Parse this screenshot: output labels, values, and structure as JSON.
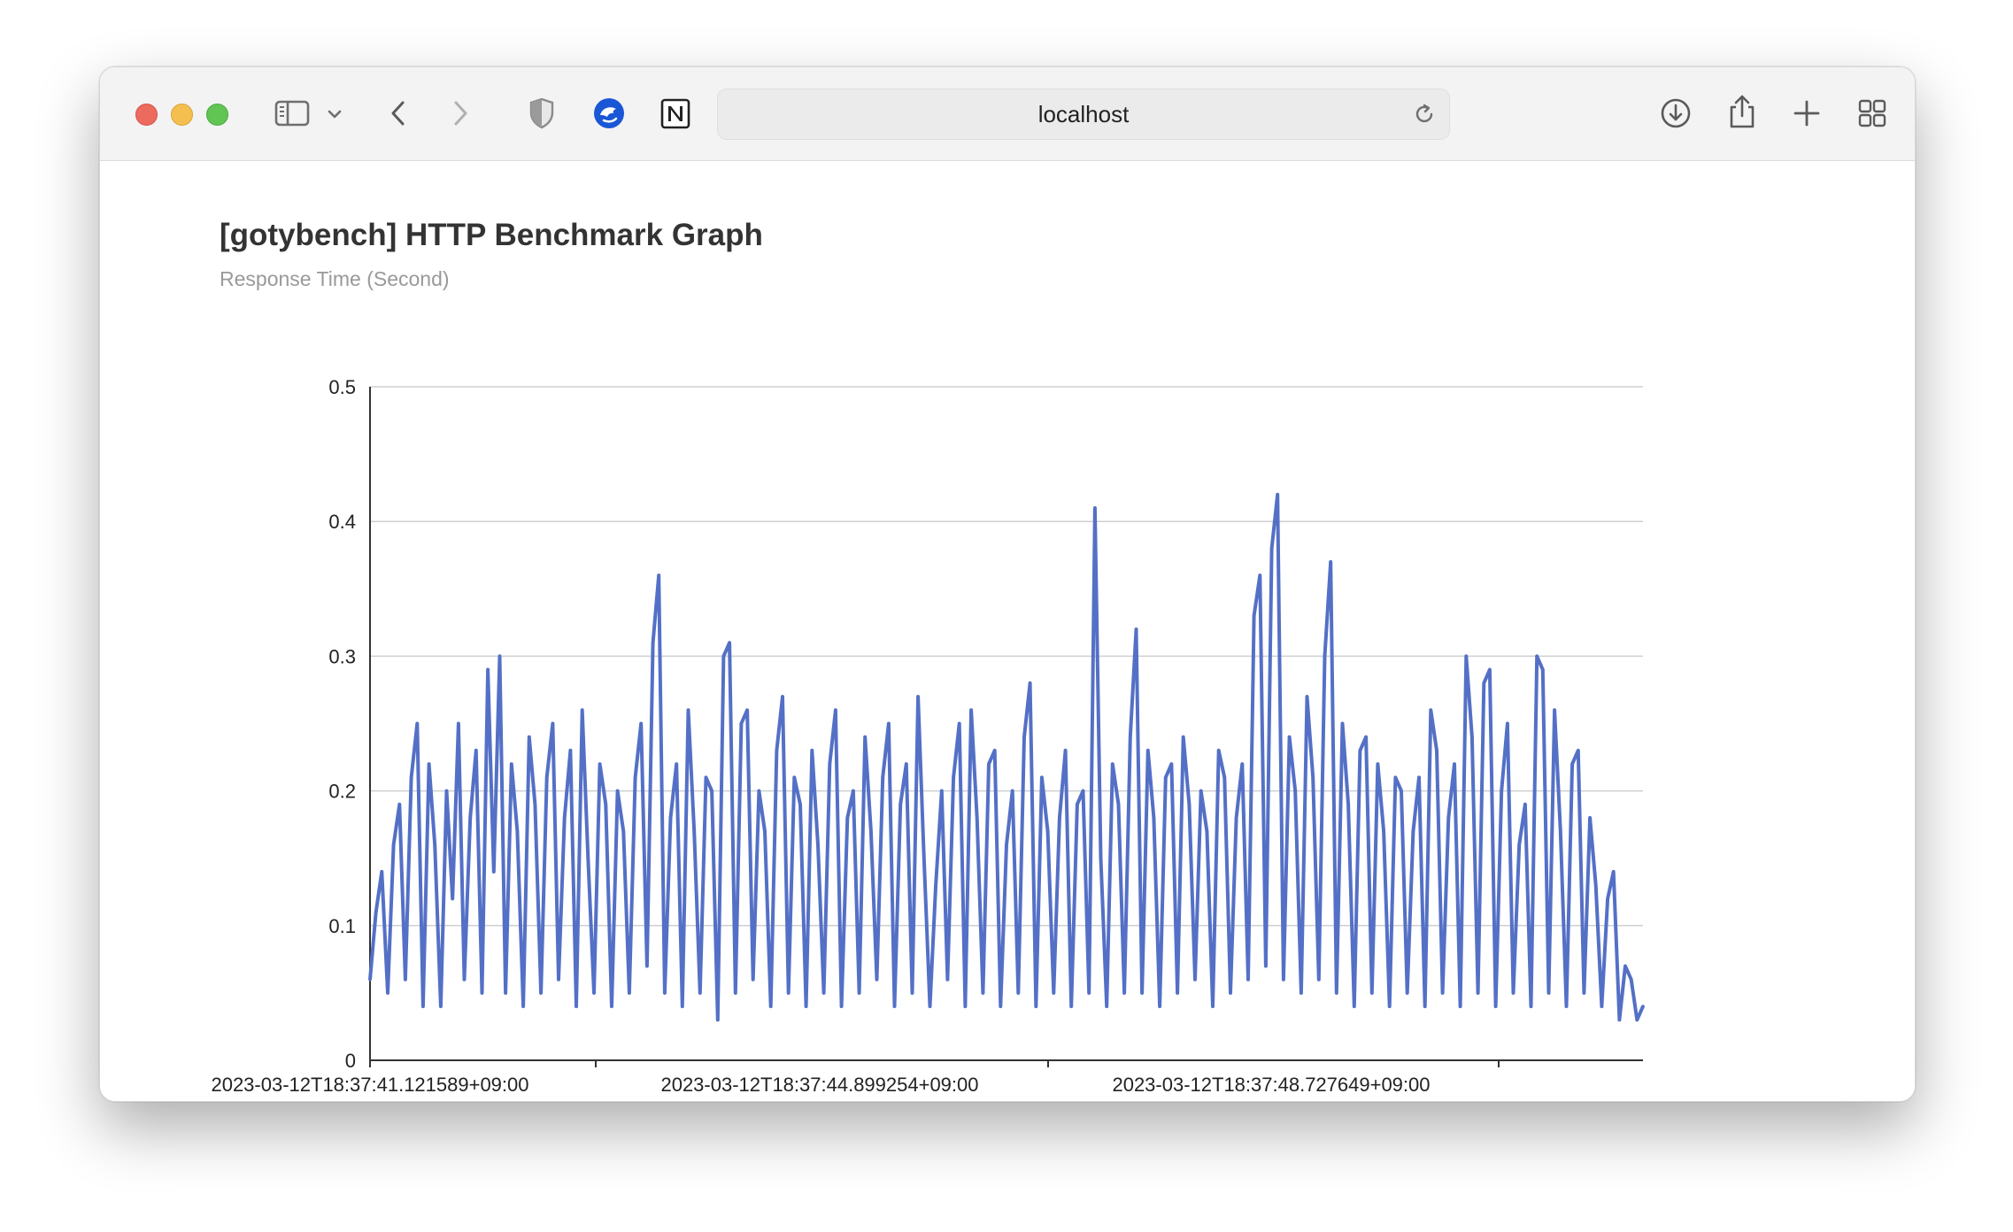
{
  "browser": {
    "address": "localhost",
    "icons": [
      "sidebar-icon",
      "chevron-down-icon",
      "back-icon",
      "forward-icon",
      "shield-icon",
      "extension-icon",
      "notion-icon",
      "reload-icon",
      "download-icon",
      "share-icon",
      "new-tab-icon",
      "tab-overview-icon"
    ]
  },
  "page": {
    "title": "[gotybench] HTTP Benchmark Graph",
    "subtitle": "Response Time (Second)"
  },
  "chart_data": {
    "type": "line",
    "title": "[gotybench] HTTP Benchmark Graph",
    "subtitle": "Response Time (Second)",
    "ylim": [
      0,
      0.5
    ],
    "y_ticks": [
      "0",
      "0.1",
      "0.2",
      "0.3",
      "0.4",
      "0.5"
    ],
    "x_ticks": [
      "2023-03-12T18:37:41.121589+09:00",
      "2023-03-12T18:37:44.899254+09:00",
      "2023-03-12T18:37:48.727649+09:00"
    ],
    "grid": true,
    "color": "#5470c6",
    "series": [
      {
        "values": [
          0.06,
          0.11,
          0.14,
          0.05,
          0.16,
          0.19,
          0.06,
          0.21,
          0.25,
          0.04,
          0.22,
          0.16,
          0.04,
          0.2,
          0.12,
          0.25,
          0.06,
          0.18,
          0.23,
          0.05,
          0.29,
          0.14,
          0.3,
          0.05,
          0.22,
          0.17,
          0.04,
          0.24,
          0.19,
          0.05,
          0.21,
          0.25,
          0.06,
          0.18,
          0.23,
          0.04,
          0.26,
          0.15,
          0.05,
          0.22,
          0.19,
          0.04,
          0.2,
          0.17,
          0.05,
          0.21,
          0.25,
          0.07,
          0.31,
          0.36,
          0.05,
          0.18,
          0.22,
          0.04,
          0.26,
          0.17,
          0.05,
          0.21,
          0.2,
          0.03,
          0.3,
          0.31,
          0.05,
          0.25,
          0.26,
          0.06,
          0.2,
          0.17,
          0.04,
          0.23,
          0.27,
          0.05,
          0.21,
          0.19,
          0.04,
          0.23,
          0.16,
          0.05,
          0.22,
          0.26,
          0.04,
          0.18,
          0.2,
          0.05,
          0.24,
          0.17,
          0.06,
          0.21,
          0.25,
          0.04,
          0.19,
          0.22,
          0.05,
          0.27,
          0.15,
          0.04,
          0.13,
          0.2,
          0.06,
          0.21,
          0.25,
          0.04,
          0.26,
          0.18,
          0.05,
          0.22,
          0.23,
          0.04,
          0.16,
          0.2,
          0.05,
          0.24,
          0.28,
          0.04,
          0.21,
          0.17,
          0.05,
          0.18,
          0.23,
          0.04,
          0.19,
          0.2,
          0.05,
          0.41,
          0.15,
          0.04,
          0.22,
          0.19,
          0.05,
          0.24,
          0.32,
          0.05,
          0.23,
          0.18,
          0.04,
          0.21,
          0.22,
          0.05,
          0.24,
          0.19,
          0.06,
          0.2,
          0.17,
          0.04,
          0.23,
          0.21,
          0.05,
          0.18,
          0.22,
          0.06,
          0.33,
          0.36,
          0.07,
          0.38,
          0.42,
          0.06,
          0.24,
          0.2,
          0.05,
          0.27,
          0.21,
          0.06,
          0.3,
          0.37,
          0.05,
          0.25,
          0.19,
          0.04,
          0.23,
          0.24,
          0.05,
          0.22,
          0.17,
          0.04,
          0.21,
          0.2,
          0.05,
          0.17,
          0.21,
          0.04,
          0.26,
          0.23,
          0.05,
          0.18,
          0.22,
          0.04,
          0.3,
          0.24,
          0.05,
          0.28,
          0.29,
          0.04,
          0.2,
          0.25,
          0.05,
          0.16,
          0.19,
          0.04,
          0.3,
          0.29,
          0.05,
          0.26,
          0.17,
          0.04,
          0.22,
          0.23,
          0.05,
          0.18,
          0.13,
          0.04,
          0.12,
          0.14,
          0.03,
          0.07,
          0.06,
          0.03,
          0.04
        ]
      }
    ]
  }
}
